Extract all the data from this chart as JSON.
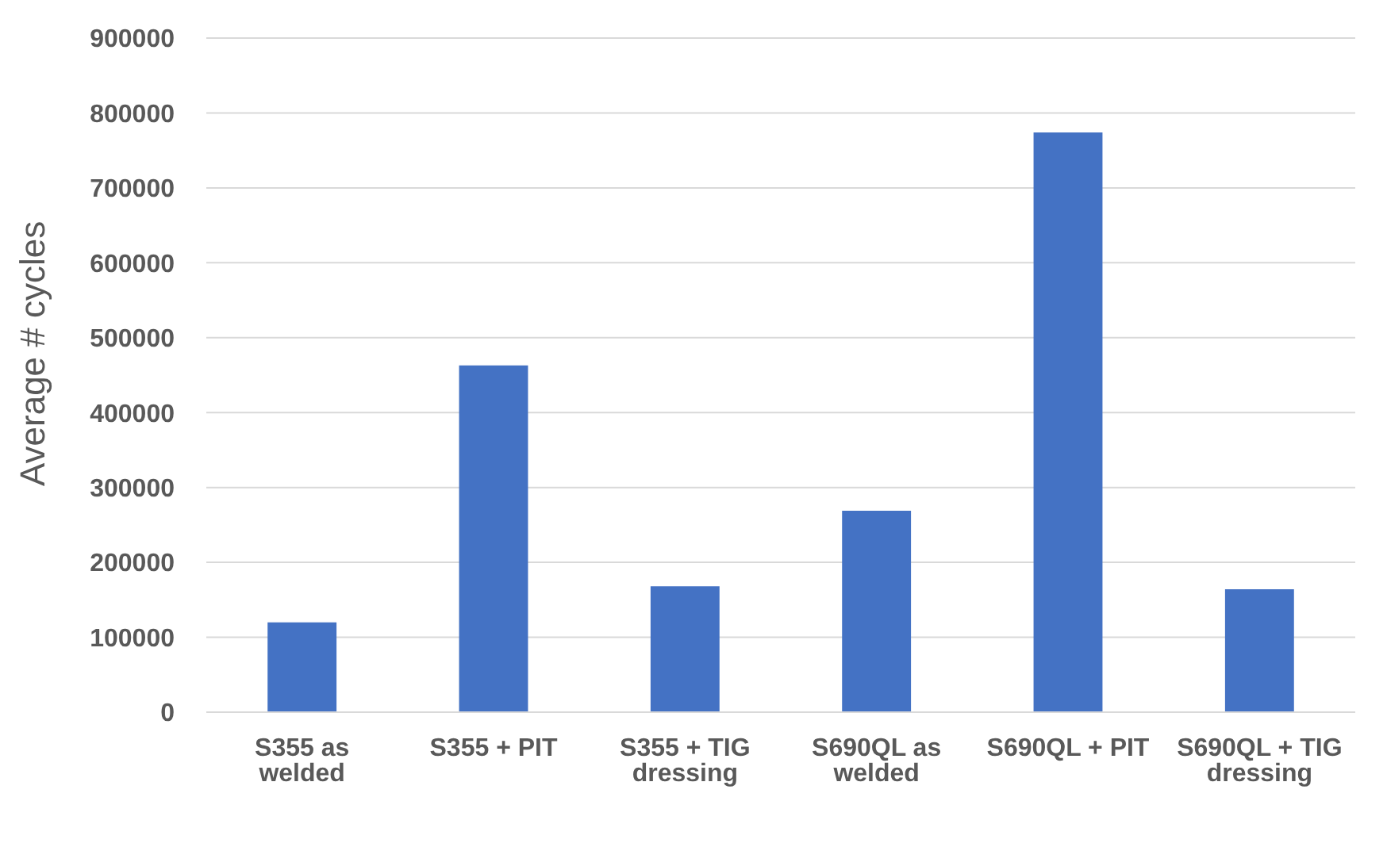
{
  "chart_data": {
    "type": "bar",
    "ylabel": "Average # cycles",
    "categories": [
      "S355 as welded",
      "S355 + PIT",
      "S355 + TIG dressing",
      "S690QL as welded",
      "S690QL + PIT",
      "S690QL + TIG dressing"
    ],
    "values": [
      120000,
      463000,
      168000,
      269000,
      774000,
      164000
    ],
    "color": "#4472c4",
    "ylim": [
      0,
      900000
    ],
    "yticks": [
      0,
      100000,
      200000,
      300000,
      400000,
      500000,
      600000,
      700000,
      800000,
      900000
    ],
    "grid": "y",
    "legend": false
  }
}
